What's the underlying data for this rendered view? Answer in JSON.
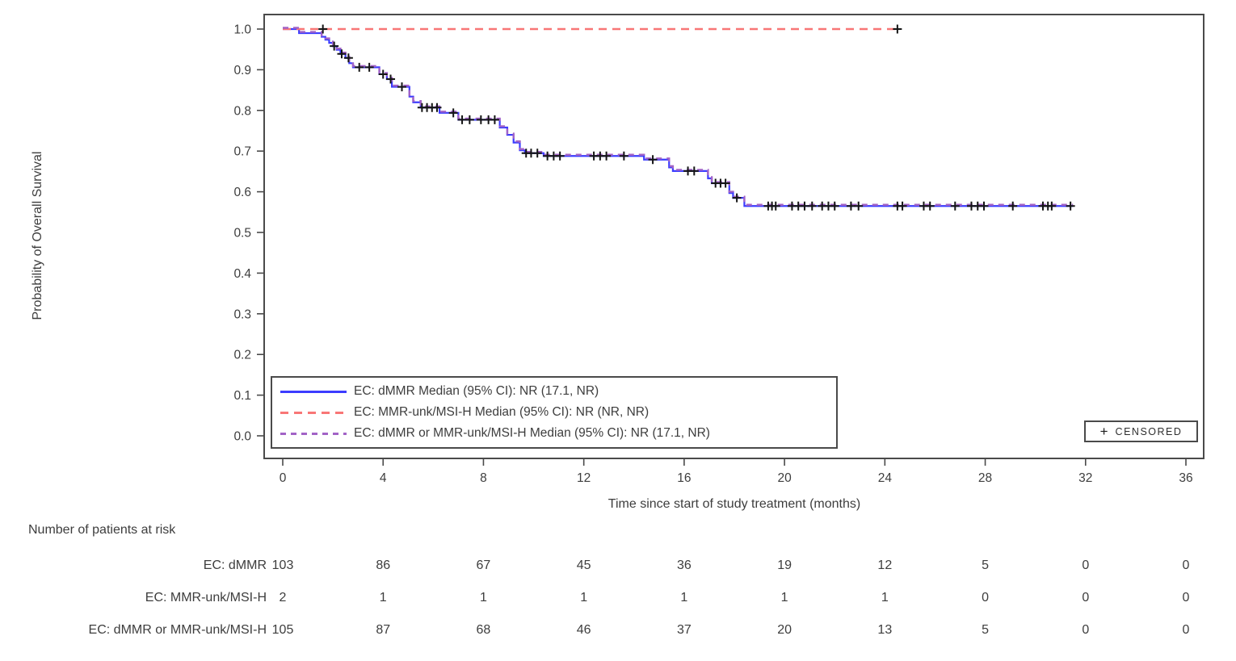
{
  "figure": {
    "y_axis_title": "Probability of Overall Survival",
    "x_axis_title": "Time since start of study treatment (months)",
    "censored_symbol": "+",
    "censored_label": "CENSORED"
  },
  "colors": {
    "frame": "#4a4a4a",
    "text": "#3d3d3d",
    "censor_mark": "#141414",
    "dmmr_blue": "#3C3CFF",
    "mmr_unk_red": "#F87676",
    "combined_purple": "#A263C6"
  },
  "chart_data": {
    "type": "line",
    "subtype": "kaplan-meier-step",
    "title": "",
    "xlabel": "Time since start of study treatment (months)",
    "ylabel": "Probability of Overall Survival",
    "xlim": [
      0,
      36
    ],
    "ylim": [
      0.0,
      1.0
    ],
    "x_ticks": [
      0,
      4,
      8,
      12,
      16,
      20,
      24,
      28,
      32,
      36
    ],
    "y_ticks": [
      "0.0",
      "0.1",
      "0.2",
      "0.3",
      "0.4",
      "0.5",
      "0.6",
      "0.7",
      "0.8",
      "0.9",
      "1.0"
    ],
    "grid": false,
    "legend_position": "inside-bottom-left",
    "frame_color": "#4a4a4a",
    "censor_color": "#141414",
    "series": [
      {
        "name": "EC: dMMR",
        "legend_label": "EC: dMMR Median (95% CI): NR (17.1, NR)",
        "color": "#3C3CFF",
        "style": "solid",
        "width": 2.2,
        "end": 31.5,
        "steps": [
          [
            0,
            1.0
          ],
          [
            0.65,
            0.99
          ],
          [
            1.55,
            0.981
          ],
          [
            1.7,
            0.974
          ],
          [
            1.85,
            0.966
          ],
          [
            2.0,
            0.958
          ],
          [
            2.15,
            0.949
          ],
          [
            2.3,
            0.939
          ],
          [
            2.5,
            0.929
          ],
          [
            2.65,
            0.916
          ],
          [
            2.8,
            0.906
          ],
          [
            3.85,
            0.889
          ],
          [
            4.15,
            0.877
          ],
          [
            4.35,
            0.858
          ],
          [
            5.05,
            0.834
          ],
          [
            5.2,
            0.82
          ],
          [
            5.5,
            0.807
          ],
          [
            6.25,
            0.794
          ],
          [
            7.0,
            0.777
          ],
          [
            8.65,
            0.758
          ],
          [
            8.95,
            0.74
          ],
          [
            9.2,
            0.721
          ],
          [
            9.45,
            0.702
          ],
          [
            9.65,
            0.695
          ],
          [
            10.4,
            0.688
          ],
          [
            14.4,
            0.679
          ],
          [
            15.4,
            0.66
          ],
          [
            15.55,
            0.651
          ],
          [
            16.95,
            0.633
          ],
          [
            17.1,
            0.621
          ],
          [
            17.8,
            0.597
          ],
          [
            17.95,
            0.585
          ],
          [
            18.4,
            0.565
          ]
        ],
        "censor_times": [
          2.05,
          2.35,
          2.62,
          3.05,
          3.45,
          4.0,
          4.3,
          4.75,
          5.55,
          5.75,
          5.95,
          6.15,
          6.8,
          7.15,
          7.45,
          7.9,
          8.2,
          8.45,
          9.7,
          9.9,
          10.15,
          10.55,
          10.8,
          11.05,
          12.4,
          12.65,
          12.9,
          13.6,
          14.75,
          16.15,
          16.4,
          17.25,
          17.45,
          17.65,
          18.1,
          19.35,
          19.5,
          19.65,
          20.3,
          20.55,
          20.8,
          21.1,
          21.5,
          21.75,
          22.0,
          22.65,
          22.95,
          24.5,
          24.7,
          25.55,
          25.8,
          26.8,
          27.45,
          27.7,
          27.95,
          29.1,
          30.3,
          30.5,
          30.65,
          31.4
        ]
      },
      {
        "name": "EC: MMR-unk/MSI-H",
        "legend_label": "EC: MMR-unk/MSI-H Median (95% CI): NR (NR, NR)",
        "color": "#F87676",
        "style": "dashed",
        "dash": "10 7",
        "width": 2.6,
        "end": 24.55,
        "steps": [
          [
            0,
            1.0
          ]
        ],
        "censor_times": [
          1.6,
          24.5
        ]
      },
      {
        "name": "EC: dMMR or MMR-unk/MSI-H",
        "legend_label": "EC: dMMR or MMR-unk/MSI-H Median (95% CI): NR (17.1, NR)",
        "color": "#A263C6",
        "style": "dashed",
        "dash": "7 6",
        "width": 2.4,
        "end": 31.5,
        "same_steps_as": 0,
        "offset_y": -1.5,
        "censor_times": []
      }
    ]
  },
  "risk_table": {
    "header": "Number of patients at risk",
    "times": [
      0,
      4,
      8,
      12,
      16,
      20,
      24,
      28,
      32,
      36
    ],
    "rows": [
      {
        "label": "EC: dMMR",
        "values": [
          "103",
          "86",
          "67",
          "45",
          "36",
          "19",
          "12",
          "5",
          "0",
          "0"
        ]
      },
      {
        "label": "EC: MMR-unk/MSI-H",
        "values": [
          "2",
          "1",
          "1",
          "1",
          "1",
          "1",
          "1",
          "0",
          "0",
          "0"
        ]
      },
      {
        "label": "EC: dMMR or MMR-unk/MSI-H",
        "values": [
          "105",
          "87",
          "68",
          "46",
          "37",
          "20",
          "13",
          "5",
          "0",
          "0"
        ]
      }
    ]
  }
}
